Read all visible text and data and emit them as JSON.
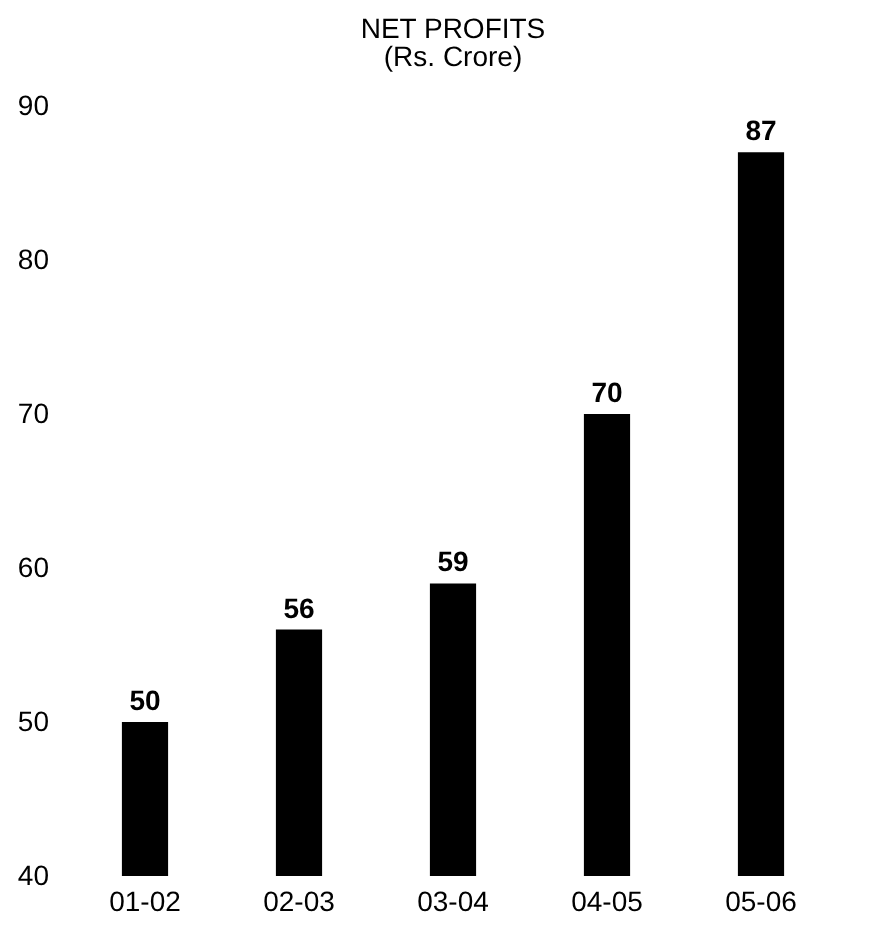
{
  "chart_data": {
    "type": "bar",
    "title": "NET PROFITS",
    "subtitle": "(Rs. Crore)",
    "categories": [
      "01-02",
      "02-03",
      "03-04",
      "04-05",
      "05-06"
    ],
    "values": [
      50,
      56,
      59,
      70,
      87
    ],
    "color": "#000000",
    "ylim": [
      40,
      90
    ],
    "yticks": [
      40,
      50,
      60,
      70,
      80,
      90
    ],
    "grid": false,
    "data_labels": true
  }
}
